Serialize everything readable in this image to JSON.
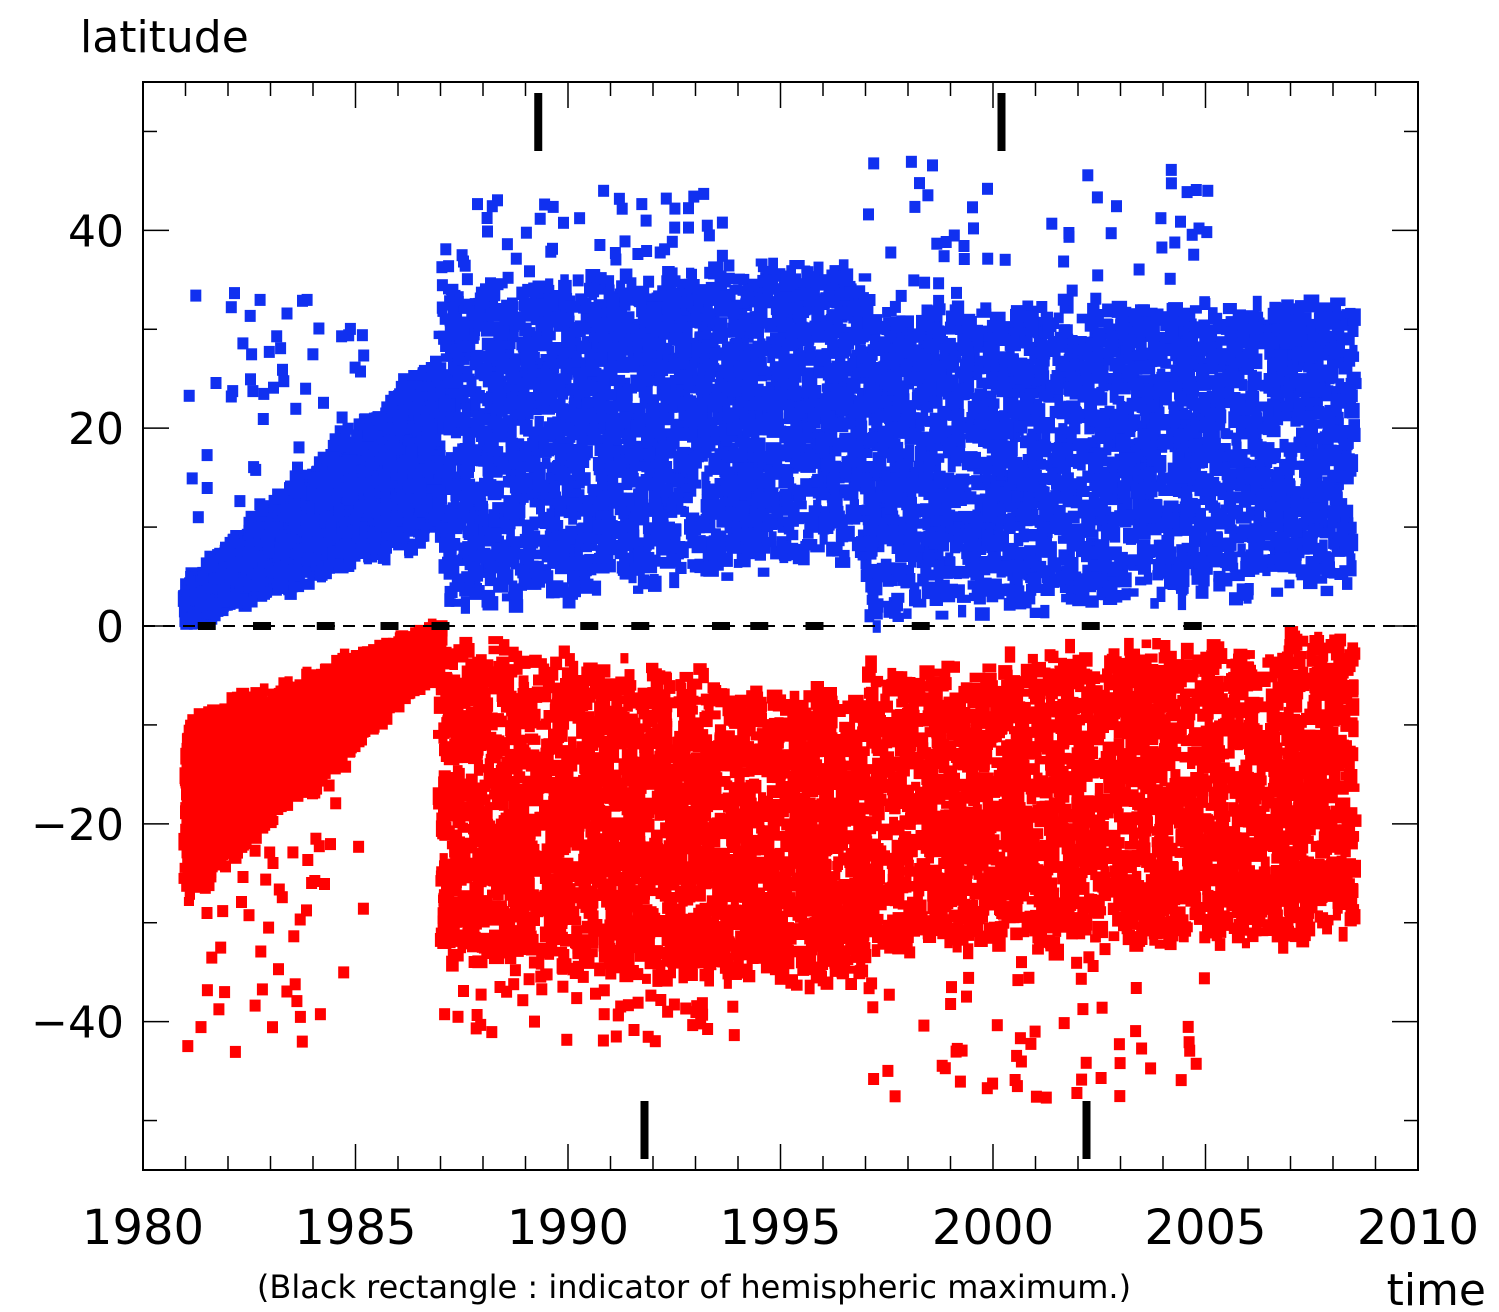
{
  "chart_data": {
    "type": "scatter",
    "ylabel": "latitude",
    "xlabel": "time",
    "caption": "(Black rectangle : indicator of hemispheric maximum.)",
    "xlim": [
      1980,
      2010
    ],
    "ylim": [
      -55,
      55
    ],
    "x_ticks": [
      "1980",
      "1985",
      "1990",
      "1995",
      "2000",
      "2005",
      "2010"
    ],
    "x_tick_values": [
      1980,
      1985,
      1990,
      1995,
      2000,
      2005,
      2010
    ],
    "y_ticks": [
      "40",
      "20",
      "0",
      "−20",
      "−40"
    ],
    "y_tick_values": [
      40,
      20,
      0,
      -20,
      -40
    ],
    "zero_line": "dashed",
    "grid": false,
    "colors": {
      "north": "#1030f0",
      "south": "#ff0000",
      "marker": "#000000"
    },
    "series": [
      {
        "hemisphere": "north",
        "clusters": [
          {
            "t": [
              1981.0,
              1987.0
            ],
            "lat": [
              [
                3,
                27
              ],
              [
                1,
                10
              ]
            ],
            "outlierLat": [
              34,
              30
            ]
          },
          {
            "t": [
              1987.0,
              1997.0
            ],
            "lat": [
              [
                33,
                36
              ],
              [
                2,
                8
              ]
            ],
            "outlierLat": [
              44,
              38
            ]
          },
          {
            "t": [
              1997.0,
              2008.5
            ],
            "lat": [
              [
                31,
                32
              ],
              [
                1,
                5
              ]
            ],
            "outlierLat": [
              47,
              40
            ]
          }
        ]
      },
      {
        "hemisphere": "south",
        "clusters": [
          {
            "t": [
              1981.0,
              1987.0
            ],
            "lat": [
              [
                -27,
                -3
              ],
              [
                -10,
                -1
              ]
            ],
            "outlierLat": [
              -44,
              -35
            ]
          },
          {
            "t": [
              1987.0,
              1997.0
            ],
            "lat": [
              [
                -33,
                -36
              ],
              [
                -2,
                -8
              ]
            ],
            "outlierLat": [
              -42,
              -38
            ]
          },
          {
            "t": [
              1997.0,
              2008.5
            ],
            "lat": [
              [
                -32,
                -31
              ],
              [
                -5,
                -1
              ]
            ],
            "outlierLat": [
              -48,
              -43
            ]
          }
        ]
      }
    ],
    "hemispheric_maxima": [
      {
        "hemisphere": "north",
        "t": 1989.3
      },
      {
        "hemisphere": "north",
        "t": 2000.2
      },
      {
        "hemisphere": "south",
        "t": 1991.8
      },
      {
        "hemisphere": "south",
        "t": 2002.2
      }
    ],
    "equator_marks": [
      1981.5,
      1982.8,
      1984.3,
      1985.8,
      1987.0,
      1990.5,
      1991.7,
      1993.6,
      1994.5,
      1995.8,
      1998.3,
      2002.3,
      2004.7
    ]
  }
}
